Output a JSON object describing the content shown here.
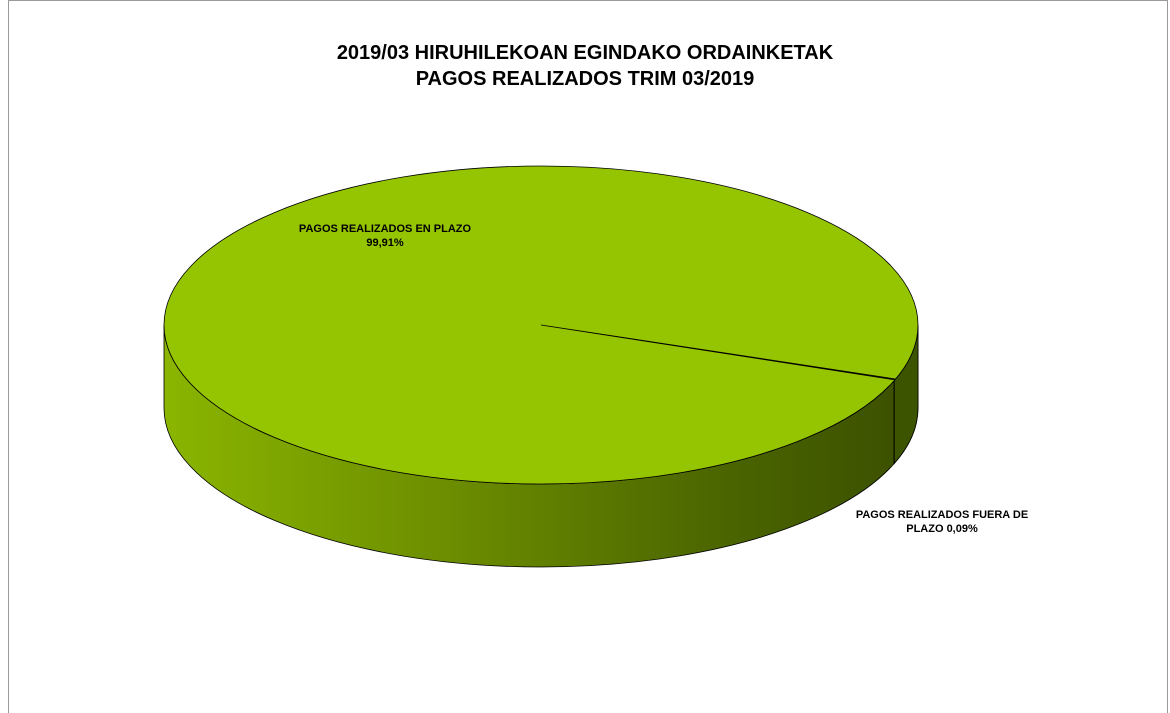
{
  "chart_data": {
    "type": "pie",
    "title": [
      "2019/03 HIRUHILEKOAN EGINDAKO ORDAINKETAK",
      "PAGOS REALIZADOS TRIM 03/2019"
    ],
    "slices": [
      {
        "label_lines": [
          "PAGOS REALIZADOS EN PLAZO",
          "99,91%"
        ],
        "value": 99.91,
        "color": "#95c400"
      },
      {
        "label_lines": [
          "PAGOS REALIZADOS FUERA DE",
          "PLAZO 0,09%"
        ],
        "value": 0.09,
        "color": "#3c5400"
      }
    ],
    "legend": "none",
    "style": "3d"
  }
}
